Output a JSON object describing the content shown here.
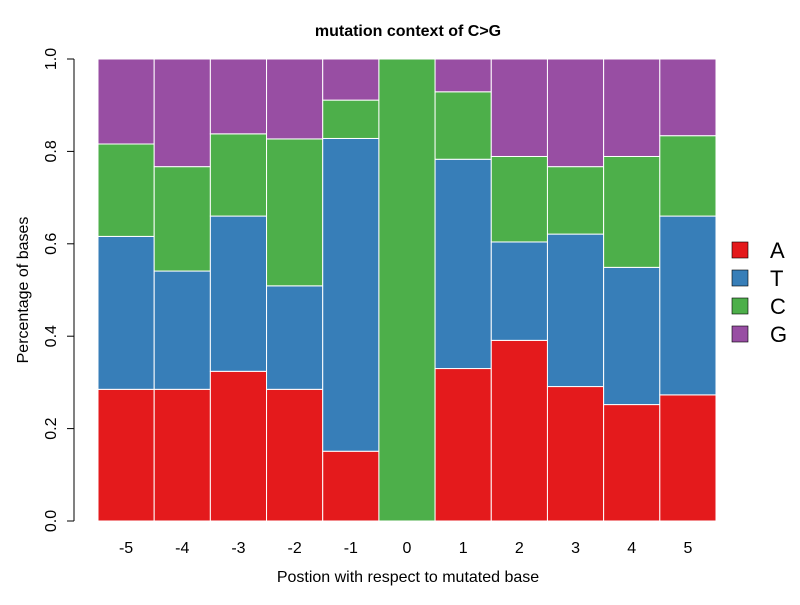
{
  "chart_data": {
    "type": "bar",
    "stacked": true,
    "normalized": true,
    "title": "mutation context of C>G",
    "xlabel": "Postion with respect to mutated base",
    "ylabel": "Percentage of bases",
    "categories": [
      "-5",
      "-4",
      "-3",
      "-2",
      "-1",
      "0",
      "1",
      "2",
      "3",
      "4",
      "5"
    ],
    "ylim": [
      0,
      1
    ],
    "yticks": [
      "0.0",
      "0.2",
      "0.4",
      "0.6",
      "0.8",
      "1.0"
    ],
    "series": [
      {
        "name": "A",
        "color": "#e41a1c",
        "values": [
          0.285,
          0.285,
          0.324,
          0.285,
          0.151,
          0.0,
          0.33,
          0.391,
          0.291,
          0.252,
          0.273
        ]
      },
      {
        "name": "T",
        "color": "#377eb8",
        "values": [
          0.331,
          0.256,
          0.336,
          0.224,
          0.677,
          0.0,
          0.453,
          0.213,
          0.33,
          0.297,
          0.387
        ]
      },
      {
        "name": "C",
        "color": "#4daf4a",
        "values": [
          0.2,
          0.226,
          0.178,
          0.318,
          0.083,
          1.0,
          0.146,
          0.185,
          0.146,
          0.24,
          0.174
        ]
      },
      {
        "name": "G",
        "color": "#984ea3",
        "values": [
          0.184,
          0.233,
          0.162,
          0.173,
          0.089,
          0.0,
          0.071,
          0.211,
          0.233,
          0.211,
          0.166
        ]
      }
    ],
    "legend": {
      "position": "right",
      "entries": [
        "A",
        "T",
        "C",
        "G"
      ]
    },
    "grid": false
  }
}
